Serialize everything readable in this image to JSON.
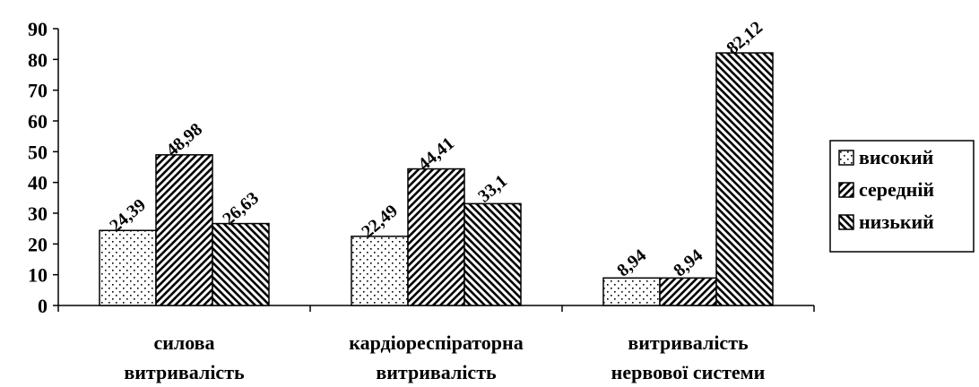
{
  "chart_data": {
    "type": "bar",
    "categories": [
      [
        "силова",
        "витривалість"
      ],
      [
        "кардіореспіраторна",
        "витривалість"
      ],
      [
        "витривалість",
        "нервової системи"
      ]
    ],
    "series": [
      {
        "name": "високий",
        "values": [
          24.39,
          22.49,
          8.94
        ],
        "labels": [
          "24,39",
          "22,49",
          "8,94"
        ],
        "pattern": "dots"
      },
      {
        "name": "середній",
        "values": [
          48.98,
          44.41,
          8.94
        ],
        "labels": [
          "48,98",
          "44,41",
          "8,94"
        ],
        "pattern": "diag-up"
      },
      {
        "name": "низький",
        "values": [
          26.63,
          33.1,
          82.12
        ],
        "labels": [
          "26,63",
          "33,1",
          "82,12"
        ],
        "pattern": "diag-down"
      }
    ],
    "ylim": [
      0,
      90
    ],
    "yticks": [
      "0",
      "10",
      "20",
      "30",
      "40",
      "50",
      "60",
      "70",
      "80",
      "90"
    ],
    "grid": false,
    "legend": "right"
  }
}
